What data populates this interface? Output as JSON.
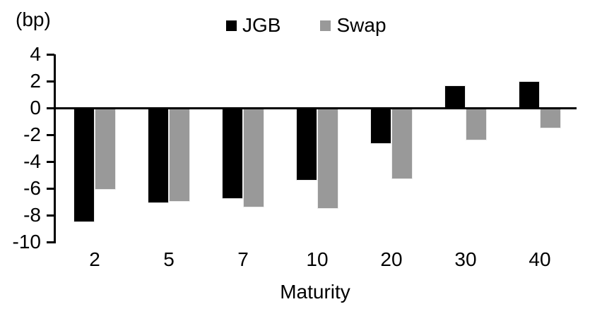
{
  "chart_data": {
    "type": "bar",
    "categories": [
      "2",
      "5",
      "7",
      "10",
      "20",
      "30",
      "40"
    ],
    "series": [
      {
        "name": "JGB",
        "color": "#000000",
        "values": [
          -8.5,
          -7.1,
          -6.8,
          -5.4,
          -2.7,
          1.7,
          2.0
        ]
      },
      {
        "name": "Swap",
        "color": "#999999",
        "values": [
          -6.1,
          -7.0,
          -7.4,
          -7.5,
          -5.3,
          -2.4,
          -1.5
        ]
      }
    ],
    "xlabel": "Maturity",
    "ylabel": "(bp)",
    "ylim": [
      -10,
      4
    ],
    "y_ticks": [
      4,
      2,
      0,
      -2,
      -4,
      -6,
      -8,
      -10
    ],
    "grid": false,
    "legend_position": "top-center",
    "axis_color": "#000000",
    "background_color": "#ffffff"
  }
}
